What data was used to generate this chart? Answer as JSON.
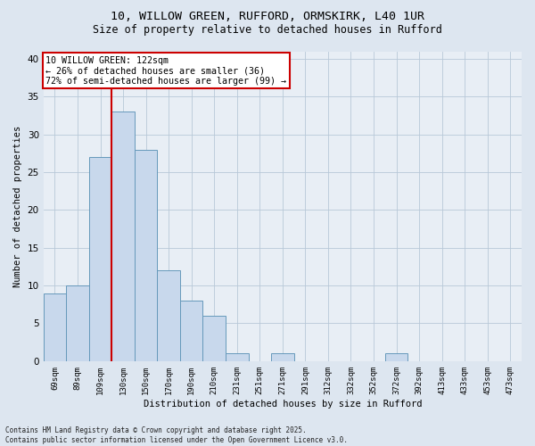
{
  "title_line1": "10, WILLOW GREEN, RUFFORD, ORMSKIRK, L40 1UR",
  "title_line2": "Size of property relative to detached houses in Rufford",
  "xlabel": "Distribution of detached houses by size in Rufford",
  "ylabel": "Number of detached properties",
  "categories": [
    "69sqm",
    "89sqm",
    "109sqm",
    "130sqm",
    "150sqm",
    "170sqm",
    "190sqm",
    "210sqm",
    "231sqm",
    "251sqm",
    "271sqm",
    "291sqm",
    "312sqm",
    "332sqm",
    "352sqm",
    "372sqm",
    "392sqm",
    "413sqm",
    "433sqm",
    "453sqm",
    "473sqm"
  ],
  "values": [
    9,
    10,
    27,
    33,
    28,
    12,
    8,
    6,
    1,
    0,
    1,
    0,
    0,
    0,
    0,
    1,
    0,
    0,
    0,
    0,
    0
  ],
  "bar_color": "#c8d8ec",
  "bar_edge_color": "#6699bb",
  "vline_color": "#cc0000",
  "vline_x": 2.5,
  "ylim": [
    0,
    41
  ],
  "yticks": [
    0,
    5,
    10,
    15,
    20,
    25,
    30,
    35,
    40
  ],
  "annotation_text": "10 WILLOW GREEN: 122sqm\n← 26% of detached houses are smaller (36)\n72% of semi-detached houses are larger (99) →",
  "annotation_box_facecolor": "#ffffff",
  "annotation_box_edgecolor": "#cc0000",
  "footer_line1": "Contains HM Land Registry data © Crown copyright and database right 2025.",
  "footer_line2": "Contains public sector information licensed under the Open Government Licence v3.0.",
  "fig_facecolor": "#dde6f0",
  "ax_facecolor": "#e8eef5"
}
